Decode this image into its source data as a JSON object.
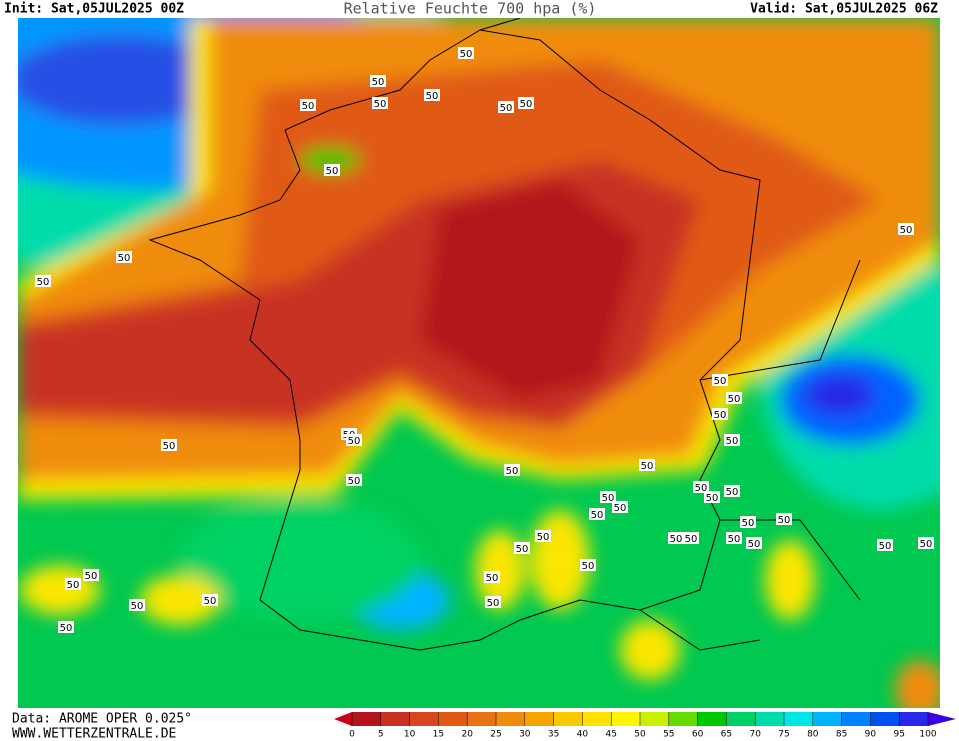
{
  "header": {
    "init": "Init: Sat,05JUL2025 00Z",
    "title": "Relative Feuchte 700 hpa (%)",
    "valid": "Valid: Sat,05JUL2025 06Z"
  },
  "footer": {
    "source": "Data: AROME OPER 0.025°",
    "website": "WWW.WETTERZENTRALE.DE"
  },
  "colorbar": {
    "ticks": [
      0,
      5,
      10,
      15,
      20,
      25,
      30,
      35,
      40,
      45,
      50,
      55,
      60,
      65,
      70,
      75,
      80,
      85,
      90,
      95,
      100
    ],
    "colors": [
      "#b4141e",
      "#c83223",
      "#d7461e",
      "#e05a14",
      "#e87314",
      "#f08c0a",
      "#f5a500",
      "#fac800",
      "#ffe100",
      "#fff500",
      "#c8f000",
      "#64dc00",
      "#00c800",
      "#00d264",
      "#00dcaa",
      "#00e6e6",
      "#00b4ff",
      "#0082ff",
      "#0050f0",
      "#2828e6"
    ],
    "under_color": "#c8001e",
    "over_color": "#3c00e6"
  },
  "contour_labels": [
    "50",
    "50",
    "50",
    "50",
    "50",
    "50",
    "50",
    "50",
    "50",
    "50",
    "50",
    "50",
    "50",
    "50",
    "50",
    "50",
    "50",
    "50",
    "50",
    "50",
    "50",
    "50",
    "50",
    "50",
    "50",
    "50",
    "50",
    "50",
    "50",
    "50",
    "50",
    "50",
    "50",
    "50",
    "50",
    "50",
    "50",
    "50",
    "50",
    "50",
    "50",
    "50",
    "50",
    "50",
    "50"
  ]
}
